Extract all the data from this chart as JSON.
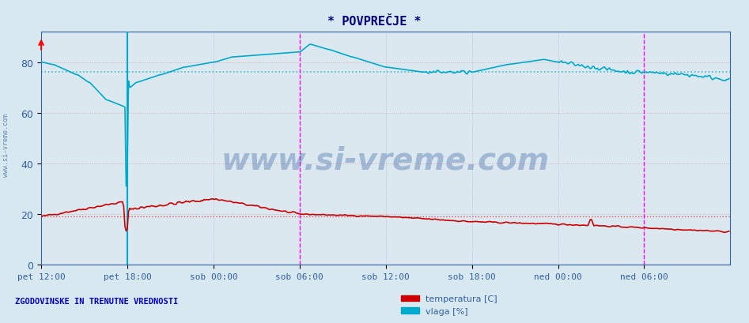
{
  "title": "* POVPREČJE *",
  "bg_color": "#d8e8f0",
  "plot_bg_color": "#dce8f0",
  "title_color": "#000080",
  "xlabel_color": "#4080c0",
  "ylabel_labels": [
    "0",
    "20",
    "40",
    "60",
    "80"
  ],
  "yticks": [
    0,
    20,
    40,
    60,
    80
  ],
  "ylim": [
    0,
    92
  ],
  "xlim": [
    0,
    576
  ],
  "xticklabels": [
    "pet 12:00",
    "pet 18:00",
    "sob 00:00",
    "sob 06:00",
    "sob 12:00",
    "sob 18:00",
    "ned 00:00",
    "ned 06:00"
  ],
  "xtick_positions": [
    0,
    72,
    144,
    216,
    288,
    360,
    432,
    504
  ],
  "temp_color": "#cc0000",
  "vlaga_color": "#00aacc",
  "temp_mean_color": "#dd5555",
  "vlaga_mean_color": "#44bbcc",
  "hline_temp": 19.0,
  "hline_vlaga": 76.0,
  "vline_magenta_1": 216,
  "vline_magenta_2": 504,
  "vline_cyan": 72,
  "watermark": "www.si-vreme.com",
  "legend_label_temp": "temperatura [C]",
  "legend_label_vlaga": "vlaga [%]",
  "bottom_text": "ZGODOVINSKE IN TRENUTNE VREDNOSTI",
  "n_points": 576
}
